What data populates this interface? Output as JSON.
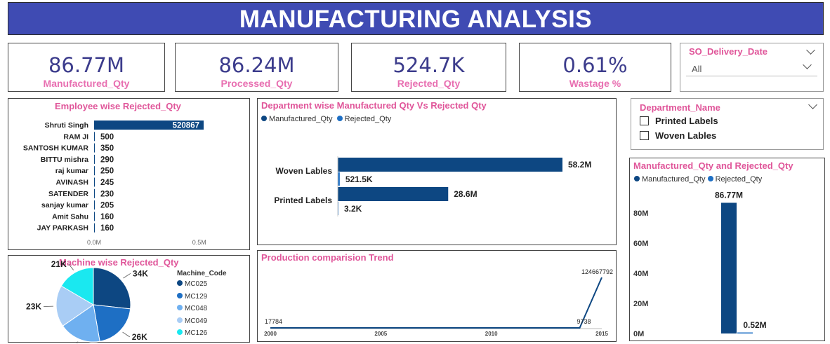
{
  "header": {
    "title": "MANUFACTURING ANALYSIS"
  },
  "kpis": [
    {
      "value": "86.77M",
      "label": "Manufactured_Qty"
    },
    {
      "value": "86.24M",
      "label": "Processed_Qty"
    },
    {
      "value": "524.7K",
      "label": "Rejected_Qty"
    },
    {
      "value": "0.61%",
      "label": "Wastage %"
    }
  ],
  "slicer_date": {
    "title": "SO_Delivery_Date",
    "selected": "All"
  },
  "slicer_dept": {
    "title": "Department_Name",
    "options": [
      "Printed Labels",
      "Woven Lables"
    ]
  },
  "colors": {
    "dark_blue": "#0d4782",
    "mid_blue": "#1e6fc4",
    "light_blue": "#6fb0f0",
    "pale_blue": "#a9cdf5",
    "cyan": "#1ae8f0",
    "title_pink": "#e0569a",
    "kpi_label": "#e86fb1",
    "header_bg": "#3f4bb3"
  },
  "chart_data": [
    {
      "type": "bar",
      "title": "Employee wise Rejected_Qty",
      "categories": [
        "Shruti Singh",
        "RAM JI",
        "SANTOSH KUMAR",
        "BITTU mishra",
        "raj kumar",
        "AVINASH",
        "SATENDER",
        "sanjay kumar",
        "Amit Sahu",
        "JAY PARKASH"
      ],
      "values": [
        520867,
        500,
        350,
        290,
        250,
        245,
        230,
        205,
        160,
        160
      ],
      "value_labels": [
        "520867",
        "500",
        "350",
        "290",
        "250",
        "245",
        "230",
        "205",
        "160",
        "160"
      ],
      "xticks": [
        "0.0M",
        "0.5M"
      ],
      "xlim": [
        0,
        550000
      ],
      "orientation": "horizontal"
    },
    {
      "type": "bar",
      "title": "Department wise Manufactured Qty Vs Rejected Qty",
      "categories": [
        "Woven Lables",
        "Printed Labels"
      ],
      "series": [
        {
          "name": "Manufactured_Qty",
          "values": [
            58.2,
            28.6
          ],
          "labels": [
            "58.2M",
            "28.6M"
          ]
        },
        {
          "name": "Rejected_Qty",
          "values": [
            0.5215,
            0.0032
          ],
          "labels": [
            "521.5K",
            "3.2K"
          ]
        }
      ],
      "unit": "M",
      "xlim": [
        0,
        70
      ],
      "orientation": "horizontal"
    },
    {
      "type": "pie",
      "title": "Machine wise Rejected_Qty",
      "legend_title": "Machine_Code",
      "categories": [
        "MC025",
        "MC129",
        "MC048",
        "MC049",
        "MC126"
      ],
      "values": [
        34,
        26,
        23,
        23,
        21
      ],
      "labels": [
        "34K",
        "26K",
        "23K",
        "23K",
        "21K"
      ]
    },
    {
      "type": "line",
      "title": "Production comparision Trend",
      "x": [
        2000,
        2014,
        2015
      ],
      "y": [
        17784,
        9738,
        124667792
      ],
      "point_labels": [
        "17784",
        "9738",
        "124667792"
      ],
      "xticks": [
        "2000",
        "2005",
        "2010",
        "2015"
      ],
      "xlim": [
        2000,
        2015
      ]
    },
    {
      "type": "bar",
      "title": "Manufactured_Qty and Rejected_Qty",
      "series": [
        {
          "name": "Manufactured_Qty",
          "values": [
            86.77
          ],
          "labels": [
            "86.77M"
          ]
        },
        {
          "name": "Rejected_Qty",
          "values": [
            0.52
          ],
          "labels": [
            "0.52M"
          ]
        }
      ],
      "yticks": [
        "0M",
        "20M",
        "40M",
        "60M",
        "80M"
      ],
      "ylim": [
        0,
        95
      ],
      "unit": "M"
    }
  ]
}
